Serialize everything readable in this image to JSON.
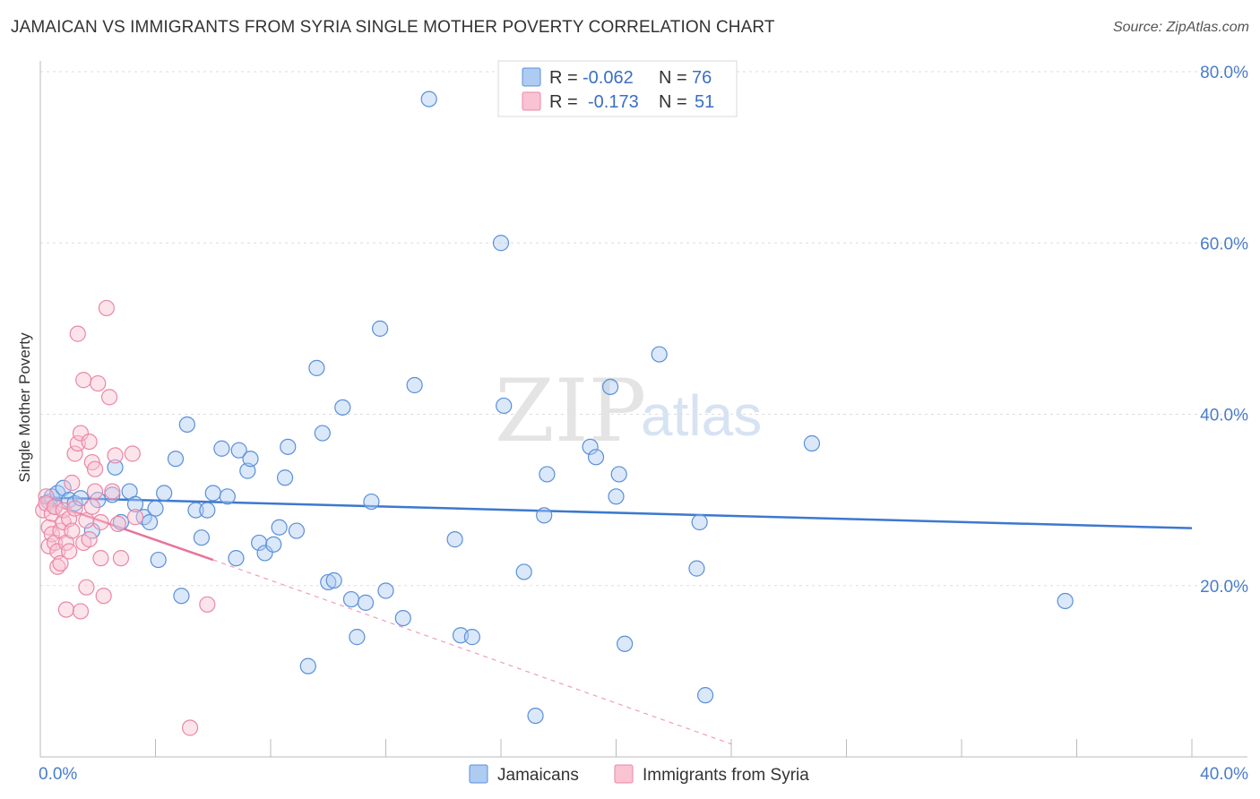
{
  "title": "JAMAICAN VS IMMIGRANTS FROM SYRIA SINGLE MOTHER POVERTY CORRELATION CHART",
  "source": "Source: ZipAtlas.com",
  "watermark": {
    "zip": "ZIP",
    "atlas": "atlas"
  },
  "legend": {
    "r_label": "R =",
    "n_label": "N =",
    "rows": [
      {
        "r": "-0.062",
        "n": "76",
        "color": "#aecbf2",
        "stroke": "#5b8fd9"
      },
      {
        "r": "-0.173",
        "n": "51",
        "color": "#f9c3d3",
        "stroke": "#ea87a6"
      }
    ]
  },
  "bottom_legend": [
    {
      "label": "Jamaicans",
      "color": "#aecbf2",
      "stroke": "#5b8fd9"
    },
    {
      "label": "Immigrants from Syria",
      "color": "#f9c3d3",
      "stroke": "#ea87a6"
    }
  ],
  "chart_data": {
    "type": "scatter",
    "title": "JAMAICAN VS IMMIGRANTS FROM SYRIA SINGLE MOTHER POVERTY CORRELATION CHART",
    "xlabel": "",
    "ylabel": "Single Mother Poverty",
    "xlim": [
      0,
      40
    ],
    "ylim": [
      0,
      80
    ],
    "x_tick_labels": [
      "0.0%",
      "40.0%"
    ],
    "y_tick_labels": [
      "20.0%",
      "40.0%",
      "60.0%",
      "80.0%"
    ],
    "y_ticks": [
      20,
      40,
      60,
      80
    ],
    "grid": true,
    "series": [
      {
        "name": "Jamaicans",
        "color": "#5b8fd9",
        "fill": "#aecbf2",
        "trend": {
          "x": [
            0,
            40
          ],
          "y": [
            30.3,
            26.7
          ],
          "color": "#3d78cf"
        },
        "points": [
          [
            0.3,
            29.8
          ],
          [
            0.4,
            30.4
          ],
          [
            0.5,
            29.2
          ],
          [
            0.6,
            30.8
          ],
          [
            0.8,
            31.4
          ],
          [
            1.0,
            30.0
          ],
          [
            1.2,
            29.6
          ],
          [
            1.4,
            30.2
          ],
          [
            2.0,
            30.0
          ],
          [
            2.5,
            30.6
          ],
          [
            1.8,
            26.4
          ],
          [
            2.6,
            33.8
          ],
          [
            2.8,
            27.4
          ],
          [
            3.1,
            31.0
          ],
          [
            3.3,
            29.5
          ],
          [
            3.6,
            28.0
          ],
          [
            3.8,
            27.4
          ],
          [
            4.0,
            29.0
          ],
          [
            4.3,
            30.8
          ],
          [
            4.1,
            23.0
          ],
          [
            4.7,
            34.8
          ],
          [
            4.9,
            18.8
          ],
          [
            5.1,
            38.8
          ],
          [
            5.4,
            28.8
          ],
          [
            5.6,
            25.6
          ],
          [
            5.8,
            28.8
          ],
          [
            6.0,
            30.8
          ],
          [
            6.3,
            36.0
          ],
          [
            6.5,
            30.4
          ],
          [
            6.8,
            23.2
          ],
          [
            6.9,
            35.8
          ],
          [
            7.2,
            33.4
          ],
          [
            7.3,
            34.8
          ],
          [
            7.6,
            25.0
          ],
          [
            7.8,
            23.8
          ],
          [
            8.1,
            24.8
          ],
          [
            8.3,
            26.8
          ],
          [
            8.5,
            32.6
          ],
          [
            8.6,
            36.2
          ],
          [
            8.9,
            26.4
          ],
          [
            9.3,
            10.6
          ],
          [
            9.6,
            45.4
          ],
          [
            9.8,
            37.8
          ],
          [
            10.0,
            20.4
          ],
          [
            10.2,
            20.6
          ],
          [
            10.5,
            40.8
          ],
          [
            10.8,
            18.4
          ],
          [
            11.0,
            14.0
          ],
          [
            11.3,
            18.0
          ],
          [
            11.5,
            29.8
          ],
          [
            11.8,
            50.0
          ],
          [
            12.0,
            19.4
          ],
          [
            12.6,
            16.2
          ],
          [
            13.0,
            43.4
          ],
          [
            13.5,
            76.8
          ],
          [
            14.4,
            25.4
          ],
          [
            14.6,
            14.2
          ],
          [
            15.0,
            14.0
          ],
          [
            16.0,
            60.0
          ],
          [
            16.1,
            41.0
          ],
          [
            16.8,
            21.6
          ],
          [
            17.2,
            4.8
          ],
          [
            17.5,
            28.2
          ],
          [
            17.6,
            33.0
          ],
          [
            19.1,
            36.2
          ],
          [
            19.3,
            35.0
          ],
          [
            19.8,
            43.2
          ],
          [
            20.0,
            30.4
          ],
          [
            20.1,
            33.0
          ],
          [
            20.3,
            13.2
          ],
          [
            21.5,
            47.0
          ],
          [
            22.8,
            22.0
          ],
          [
            22.9,
            27.4
          ],
          [
            23.1,
            7.2
          ],
          [
            26.8,
            36.6
          ],
          [
            35.6,
            18.2
          ]
        ]
      },
      {
        "name": "Immigrants from Syria",
        "color": "#ea87a6",
        "fill": "#f9c3d3",
        "trend": {
          "x": [
            0,
            6
          ],
          "y": [
            30.0,
            23.0
          ],
          "color": "#e8739a"
        },
        "trend_extended": {
          "x": [
            6,
            24
          ],
          "y": [
            23.0,
            1.5
          ]
        },
        "points": [
          [
            0.1,
            28.8
          ],
          [
            0.2,
            30.4
          ],
          [
            0.2,
            29.6
          ],
          [
            0.3,
            26.8
          ],
          [
            0.3,
            24.6
          ],
          [
            0.4,
            26.0
          ],
          [
            0.4,
            28.4
          ],
          [
            0.5,
            29.2
          ],
          [
            0.5,
            25.0
          ],
          [
            0.6,
            22.2
          ],
          [
            0.6,
            24.0
          ],
          [
            0.7,
            22.6
          ],
          [
            0.7,
            26.4
          ],
          [
            0.8,
            27.4
          ],
          [
            0.8,
            28.8
          ],
          [
            0.9,
            17.2
          ],
          [
            0.9,
            25.0
          ],
          [
            1.0,
            27.8
          ],
          [
            1.0,
            24.0
          ],
          [
            1.1,
            26.4
          ],
          [
            1.1,
            32.0
          ],
          [
            1.2,
            29.0
          ],
          [
            1.2,
            35.4
          ],
          [
            1.3,
            49.4
          ],
          [
            1.3,
            36.6
          ],
          [
            1.4,
            37.8
          ],
          [
            1.4,
            17.0
          ],
          [
            1.5,
            25.0
          ],
          [
            1.5,
            44.0
          ],
          [
            1.6,
            27.6
          ],
          [
            1.6,
            19.8
          ],
          [
            1.7,
            36.8
          ],
          [
            1.7,
            25.4
          ],
          [
            1.8,
            34.4
          ],
          [
            1.8,
            29.2
          ],
          [
            1.9,
            33.6
          ],
          [
            1.9,
            31.0
          ],
          [
            2.0,
            43.6
          ],
          [
            2.1,
            27.4
          ],
          [
            2.1,
            23.2
          ],
          [
            2.2,
            18.8
          ],
          [
            2.3,
            52.4
          ],
          [
            2.4,
            42.0
          ],
          [
            2.5,
            31.0
          ],
          [
            2.6,
            35.2
          ],
          [
            2.7,
            27.2
          ],
          [
            2.8,
            23.2
          ],
          [
            3.2,
            35.4
          ],
          [
            3.3,
            28.0
          ],
          [
            5.8,
            17.8
          ],
          [
            5.2,
            3.4
          ]
        ]
      }
    ]
  }
}
